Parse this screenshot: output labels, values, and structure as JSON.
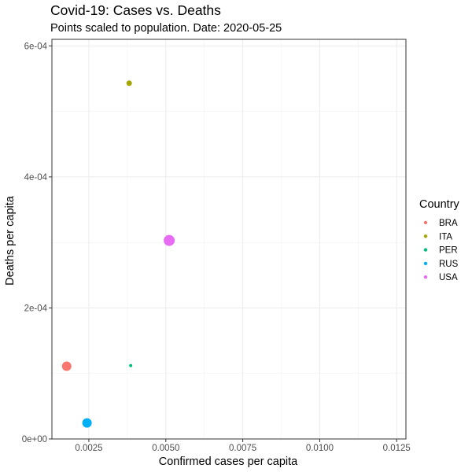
{
  "chart_data": {
    "type": "scatter",
    "title": "Covid-19: Cases vs. Deaths",
    "subtitle": "Points scaled to population. Date: 2020-05-25",
    "xlabel": "Confirmed cases per capita",
    "ylabel": "Deaths per capita",
    "xlim": [
      0.0013,
      0.0128
    ],
    "ylim": [
      0,
      0.00061
    ],
    "x_ticks": [
      0.0025,
      0.005,
      0.0075,
      0.01,
      0.0125
    ],
    "x_tick_labels": [
      "0.0025",
      "0.0050",
      "0.0075",
      "0.0100",
      "0.0125"
    ],
    "y_ticks": [
      0,
      0.0002,
      0.0004,
      0.0006
    ],
    "y_tick_labels": [
      "0e+00",
      "2e-04",
      "4e-04",
      "6e-04"
    ],
    "grid": true,
    "legend": {
      "title": "Country",
      "position": "right",
      "entries": [
        "BRA",
        "ITA",
        "PER",
        "RUS",
        "USA"
      ]
    },
    "series": [
      {
        "name": "BRA",
        "color": "#F8766D",
        "x": 0.00178,
        "y": 0.000111,
        "size": "large"
      },
      {
        "name": "ITA",
        "color": "#A3A500",
        "x": 0.00381,
        "y": 0.000543,
        "size": "small"
      },
      {
        "name": "PER",
        "color": "#00BF7D",
        "x": 0.00386,
        "y": 0.000112,
        "size": "tiny"
      },
      {
        "name": "RUS",
        "color": "#00B0F6",
        "x": 0.00244,
        "y": 2.45e-05,
        "size": "large"
      },
      {
        "name": "USA",
        "color": "#E76BF3",
        "x": 0.00511,
        "y": 0.000303,
        "size": "largest"
      }
    ]
  }
}
